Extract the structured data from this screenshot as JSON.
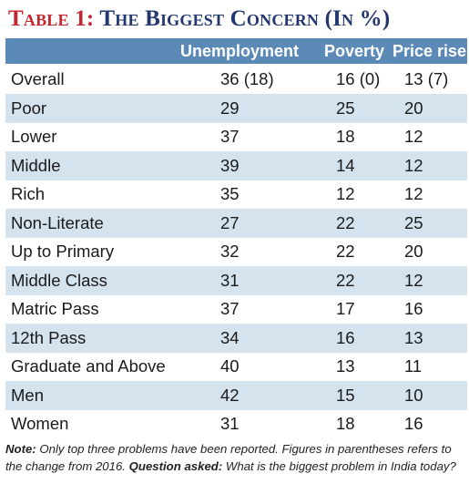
{
  "title": {
    "label": "Table 1:",
    "text": "The Biggest Concern (In %)"
  },
  "table": {
    "headers": [
      "",
      "Unemployment",
      "Poverty",
      "Price rise"
    ],
    "rows": [
      {
        "label": "Overall",
        "values": [
          "36 (18)",
          "16 (0)",
          "13 (7)"
        ]
      },
      {
        "label": "Poor",
        "values": [
          "29",
          "25",
          "20"
        ]
      },
      {
        "label": "Lower",
        "values": [
          "37",
          "18",
          "12"
        ]
      },
      {
        "label": "Middle",
        "values": [
          "39",
          "14",
          "12"
        ]
      },
      {
        "label": "Rich",
        "values": [
          "35",
          "12",
          "12"
        ]
      },
      {
        "label": "Non-Literate",
        "values": [
          "27",
          "22",
          "25"
        ]
      },
      {
        "label": "Up to Primary",
        "values": [
          "32",
          "22",
          "20"
        ]
      },
      {
        "label": "Middle Class",
        "values": [
          "31",
          "22",
          "12"
        ]
      },
      {
        "label": "Matric Pass",
        "values": [
          "37",
          "17",
          "16"
        ]
      },
      {
        "label": "12th Pass",
        "values": [
          "34",
          "16",
          "13"
        ]
      },
      {
        "label": "Graduate and Above",
        "values": [
          "40",
          "13",
          "11"
        ]
      },
      {
        "label": "Men",
        "values": [
          "42",
          "15",
          "10"
        ]
      },
      {
        "label": "Women",
        "values": [
          "31",
          "18",
          "16"
        ]
      }
    ]
  },
  "note": {
    "note_label": "Note:",
    "note_text": "Only top three problems have been reported. Figures in parentheses refers to the change from 2016.",
    "question_label": "Question asked:",
    "question_text": "What is the biggest problem in India today?"
  },
  "colors": {
    "title_label": "#c4262e",
    "title_text": "#22376e",
    "header_bg": "#5b8ab6",
    "alt_row_bg": "#d5e3ef"
  }
}
